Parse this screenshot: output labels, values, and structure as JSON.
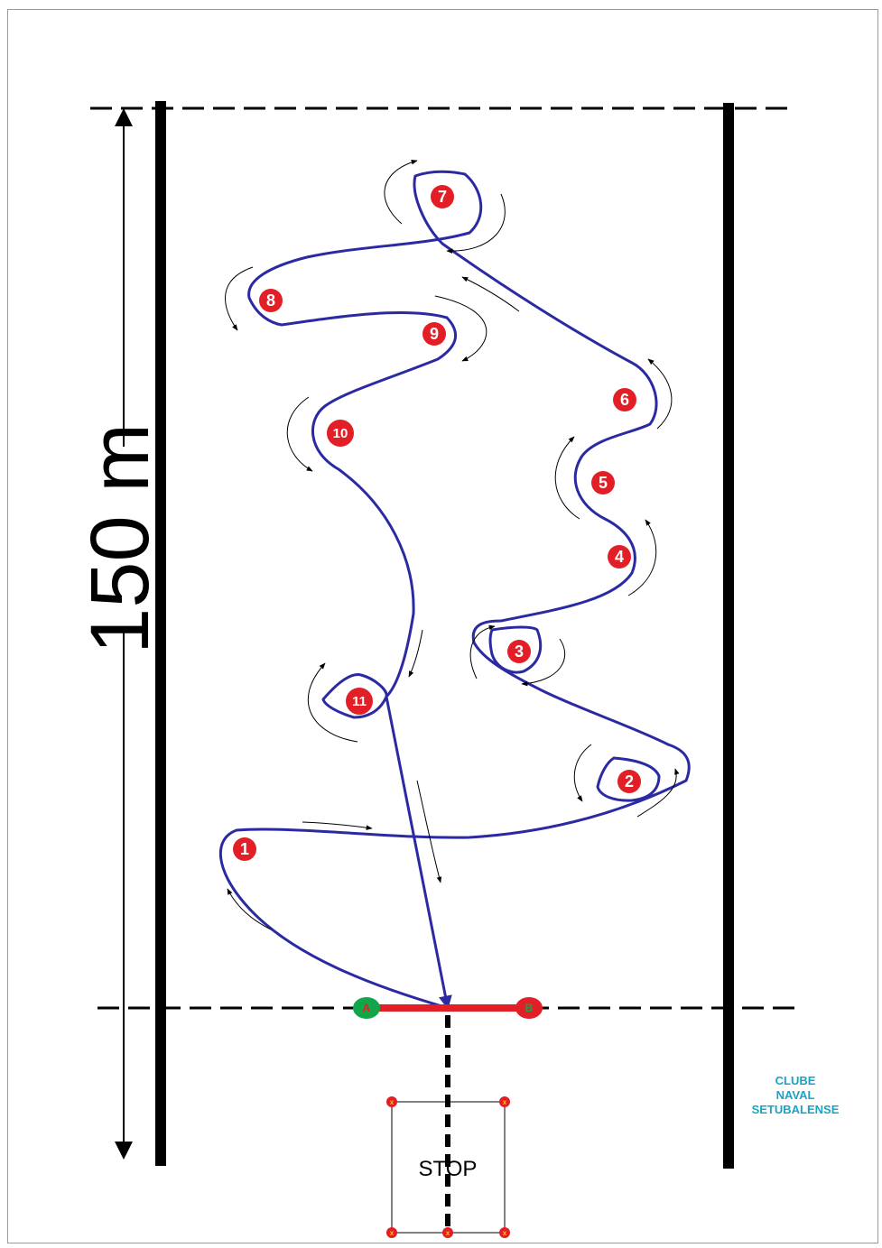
{
  "distance": {
    "label": "150 m"
  },
  "buoys": [
    {
      "id": "1",
      "label": "1"
    },
    {
      "id": "2",
      "label": "2"
    },
    {
      "id": "3",
      "label": "3"
    },
    {
      "id": "4",
      "label": "4"
    },
    {
      "id": "5",
      "label": "5"
    },
    {
      "id": "6",
      "label": "6"
    },
    {
      "id": "7",
      "label": "7"
    },
    {
      "id": "8",
      "label": "8"
    },
    {
      "id": "9",
      "label": "9"
    },
    {
      "id": "10",
      "label": "10"
    },
    {
      "id": "11",
      "label": "11"
    }
  ],
  "start_line": {
    "gate_a": "A",
    "gate_b": "B"
  },
  "stop_box": {
    "label": "STOP",
    "corner_marker": "x"
  },
  "club": {
    "line1": "CLUBE",
    "line2": "NAVAL",
    "line3": "SETUBALENSE"
  },
  "colors": {
    "course_line": "#2b2aa3",
    "buoy": "#e21f26",
    "gate_a": "#12a54a",
    "gate_b": "#e21f26",
    "start_bar": "#e21f26",
    "club_text": "#1ba3c6"
  }
}
